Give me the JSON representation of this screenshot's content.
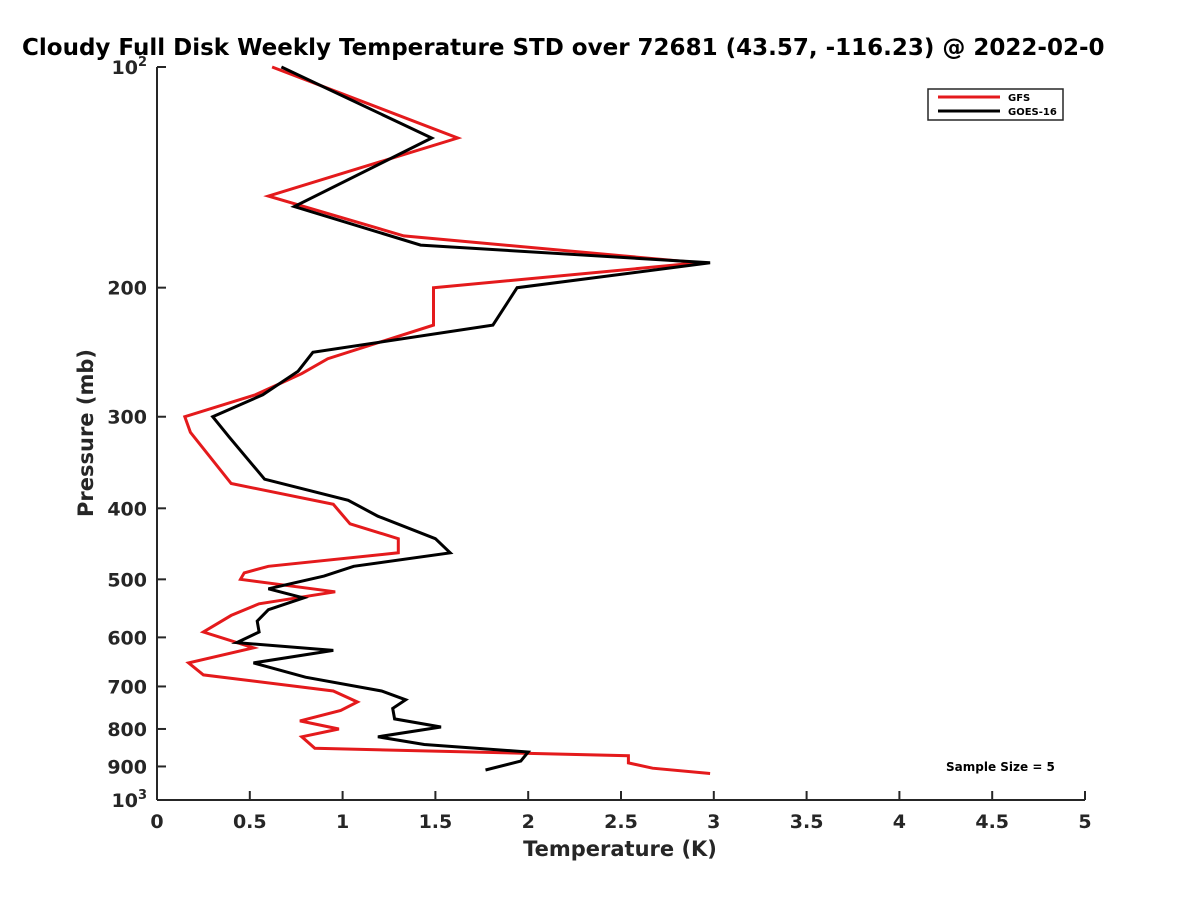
{
  "chart_data": {
    "type": "line",
    "title": "Cloudy Full Disk Weekly Temperature STD over 72681 (43.57, -116.23) @ 2022-02-0",
    "xlabel": "Temperature (K)",
    "ylabel": "Pressure (mb)",
    "xlim": [
      0,
      5
    ],
    "ylim": [
      100,
      1000
    ],
    "y_scale": "log",
    "y_reversed": true,
    "grid": false,
    "legend_position": "top-right",
    "x_ticks": [
      0,
      0.5,
      1,
      1.5,
      2,
      2.5,
      3,
      3.5,
      4,
      4.5,
      5
    ],
    "x_tick_labels": [
      "0",
      "0.5",
      "1",
      "1.5",
      "2",
      "2.5",
      "3",
      "3.5",
      "4",
      "4.5",
      "5"
    ],
    "y_ticks": [
      100,
      200,
      300,
      400,
      500,
      600,
      700,
      800,
      900,
      1000
    ],
    "y_tick_labels": [
      {
        "base": "10",
        "exp": "2"
      },
      {
        "base": "200",
        "exp": ""
      },
      {
        "base": "300",
        "exp": ""
      },
      {
        "base": "400",
        "exp": ""
      },
      {
        "base": "500",
        "exp": ""
      },
      {
        "base": "600",
        "exp": ""
      },
      {
        "base": "700",
        "exp": ""
      },
      {
        "base": "800",
        "exp": ""
      },
      {
        "base": "900",
        "exp": ""
      },
      {
        "base": "10",
        "exp": "3"
      }
    ],
    "series": [
      {
        "name": "GFS",
        "color": "#e41a1c",
        "x": [
          0.62,
          1.62,
          0.6,
          1.33,
          2.92,
          1.49,
          1.49,
          0.92,
          0.78,
          0.53,
          0.15,
          0.18,
          0.4,
          0.95,
          1.04,
          1.3,
          1.3,
          0.6,
          0.47,
          0.45,
          0.96,
          0.55,
          0.4,
          0.25,
          0.52,
          0.17,
          0.25,
          0.95,
          1.08,
          0.99,
          0.77,
          0.98,
          0.78,
          0.85,
          2.54,
          2.54,
          2.67,
          2.98
        ],
        "y": [
          100,
          125,
          150,
          170,
          185,
          200,
          225,
          250,
          262,
          280,
          300,
          315,
          370,
          395,
          420,
          440,
          460,
          480,
          490,
          500,
          520,
          540,
          560,
          590,
          620,
          650,
          675,
          710,
          735,
          755,
          780,
          800,
          820,
          850,
          870,
          890,
          905,
          920
        ]
      },
      {
        "name": "GOES-16",
        "color": "#000000",
        "x": [
          0.67,
          1.48,
          0.74,
          1.42,
          2.98,
          1.94,
          1.81,
          0.84,
          0.76,
          0.57,
          0.3,
          0.39,
          0.58,
          1.03,
          1.19,
          1.5,
          1.58,
          1.06,
          0.9,
          0.6,
          0.79,
          0.6,
          0.54,
          0.55,
          0.43,
          0.95,
          0.52,
          0.8,
          1.21,
          1.34,
          1.27,
          1.28,
          1.53,
          1.19,
          1.44,
          2.0,
          1.96,
          1.77
        ],
        "y": [
          100,
          125,
          155,
          175,
          185,
          200,
          225,
          245,
          260,
          280,
          300,
          320,
          365,
          390,
          410,
          440,
          460,
          480,
          495,
          515,
          530,
          550,
          570,
          590,
          610,
          625,
          650,
          680,
          710,
          730,
          750,
          775,
          795,
          820,
          840,
          860,
          885,
          910
        ]
      }
    ],
    "annotation": "Sample Size = 5"
  }
}
